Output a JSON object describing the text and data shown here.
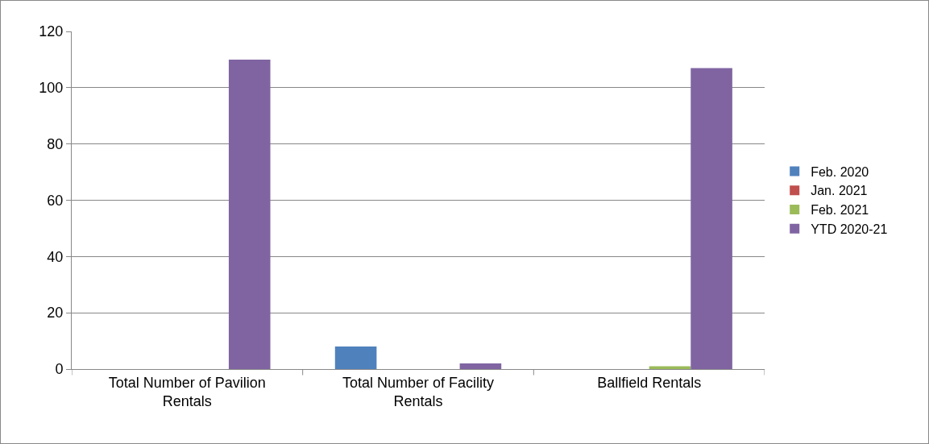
{
  "chart_data": {
    "type": "bar",
    "categories": [
      "Total Number of Pavilion Rentals",
      "Total Number of Facility Rentals",
      "Ballfield Rentals"
    ],
    "series": [
      {
        "name": "Feb. 2020",
        "color": "#4f81bd",
        "values": [
          0,
          8,
          0
        ]
      },
      {
        "name": "Jan. 2021",
        "color": "#c0504d",
        "values": [
          0,
          0,
          0
        ]
      },
      {
        "name": "Feb. 2021",
        "color": "#9bbb59",
        "values": [
          0,
          0,
          1
        ]
      },
      {
        "name": "YTD 2020-21",
        "color": "#8064a2",
        "values": [
          110,
          2,
          107
        ]
      }
    ],
    "ylim": [
      0,
      120
    ],
    "yticks": [
      0,
      20,
      40,
      60,
      80,
      100,
      120
    ],
    "grid": "y",
    "legend": "right"
  }
}
